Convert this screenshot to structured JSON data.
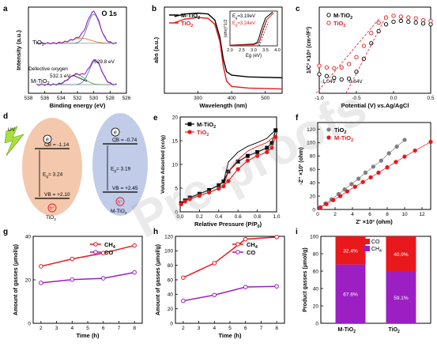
{
  "watermark": "Pre-proofs",
  "colors": {
    "black": "#000000",
    "red": "#e8181c",
    "purple": "#9b1fc2",
    "blue_fit": "#3d7fd8",
    "green_fit": "#43a843",
    "orange_fit": "#e07b39",
    "salmon": "#f4c8ac",
    "lavender": "#c0cce8",
    "lime": "#a8e040",
    "grey": "#7f7f7f"
  },
  "chart_data": [
    {
      "panel": "a",
      "type": "line",
      "title": "O 1s",
      "xlabel": "Binding energy (eV)",
      "ylabel": "Intensity (a.u.)",
      "xlim": [
        538,
        526
      ],
      "xticks": [
        538,
        536,
        534,
        532,
        530,
        528,
        526
      ],
      "series": [
        {
          "name": "TiO2",
          "label_parts": [
            "TiO",
            "2",
            ""
          ]
        },
        {
          "name": "M-TiO2",
          "label_parts": [
            "M-TiO",
            "2",
            ""
          ]
        }
      ],
      "annotations": [
        "Defective oxygen",
        "532.1 eV",
        "529.8 eV"
      ]
    },
    {
      "panel": "b",
      "type": "line",
      "xlabel": "Wavelength (nm)",
      "ylabel": "abs (a.u.)",
      "xlim": [
        200,
        550
      ],
      "xticks": [
        300,
        400,
        500
      ],
      "series": [
        {
          "name": "M-TiO2",
          "label_parts": [
            "M-TiO",
            "2",
            ""
          ]
        },
        {
          "name": "TiO2",
          "label_parts": [
            "TiO",
            "2",
            ""
          ]
        }
      ],
      "inset": {
        "xlabel": "Eg (eV)",
        "ylabel": "(αhν)^1/2",
        "xlim": [
          2.0,
          4.0
        ],
        "xticks": [
          2.0,
          2.5,
          3.0,
          3.5,
          4.0
        ],
        "labels": [
          {
            "parts": [
              "E",
              "g",
              "=3.19eV"
            ]
          },
          {
            "parts": [
              "E",
              "g",
              "=3.24eV"
            ]
          }
        ],
        "series": [
          {
            "name": "M-TiO2",
            "x": [
              2.0,
              3.0,
              3.15,
              3.22,
              3.3,
              3.5,
              3.8
            ],
            "y": [
              0.02,
              0.05,
              0.1,
              0.22,
              0.42,
              0.8,
              0.97
            ]
          },
          {
            "name": "TiO2",
            "x": [
              2.0,
              3.0,
              3.2,
              3.28,
              3.35,
              3.55,
              3.85
            ],
            "y": [
              0.02,
              0.03,
              0.08,
              0.2,
              0.38,
              0.75,
              0.95
            ]
          }
        ]
      },
      "main": [
        {
          "name": "M-TiO2",
          "x": [
            230,
            260,
            300,
            330,
            350,
            365,
            375,
            385,
            400,
            450,
            550
          ],
          "y": [
            0.89,
            0.92,
            0.93,
            0.92,
            0.85,
            0.65,
            0.4,
            0.25,
            0.21,
            0.19,
            0.18
          ]
        },
        {
          "name": "TiO2",
          "x": [
            230,
            260,
            300,
            330,
            350,
            365,
            375,
            385,
            400,
            450,
            550
          ],
          "y": [
            0.82,
            0.86,
            0.88,
            0.87,
            0.8,
            0.6,
            0.32,
            0.14,
            0.08,
            0.06,
            0.05
          ]
        }
      ]
    },
    {
      "panel": "c",
      "type": "scatter",
      "xlabel": "Potential (V) vs.Ag/AgCl",
      "ylabel": "1/C² ×10⁹ (cm⁴/F²)",
      "xlim": [
        -1.0,
        0.5
      ],
      "xticks": [
        -1.0,
        -0.5,
        0.0,
        0.5
      ],
      "series": [
        {
          "name": "M-TiO2",
          "label_parts": [
            "M-TiO",
            "2",
            ""
          ],
          "x": [
            -1.0,
            -0.9,
            -0.8,
            -0.7,
            -0.6,
            -0.5,
            -0.4,
            -0.3,
            -0.2,
            -0.1,
            0.0,
            0.1,
            0.2,
            0.3,
            0.4,
            0.5
          ],
          "y": [
            0.22,
            0.2,
            0.18,
            0.16,
            0.17,
            0.25,
            0.4,
            0.58,
            0.72,
            0.8,
            0.83,
            0.84,
            0.83,
            0.82,
            0.81,
            0.8
          ]
        },
        {
          "name": "TiO2",
          "label_parts": [
            "TiO",
            "2",
            ""
          ],
          "x": [
            -1.0,
            -0.9,
            -0.8,
            -0.7,
            -0.6,
            -0.5,
            -0.4,
            -0.3,
            -0.2,
            -0.1,
            0.0,
            0.1,
            0.2,
            0.3,
            0.4,
            0.5
          ],
          "y": [
            0.32,
            0.3,
            0.29,
            0.3,
            0.34,
            0.42,
            0.55,
            0.7,
            0.82,
            0.88,
            0.9,
            0.89,
            0.88,
            0.87,
            0.85,
            0.84
          ]
        }
      ],
      "annotations": [
        "-1.04V",
        "-0.64V"
      ]
    },
    {
      "panel": "d",
      "type": "diagram",
      "left": {
        "name_parts": [
          "TiO",
          "2",
          ""
        ],
        "cb": "CB = -1.14",
        "eg_parts": [
          "E",
          "g",
          "= 3.24"
        ],
        "vb": "VB = +2.10"
      },
      "right": {
        "name_parts": [
          "M-TiO",
          "2",
          ""
        ],
        "cb": "CB = -0.74",
        "eg_parts": [
          "E",
          "g",
          "= 3.19"
        ],
        "vb": "VB = +2.45"
      },
      "uv_label": "UV",
      "e_label": "e",
      "h_label": "h⁺"
    },
    {
      "panel": "e",
      "type": "line",
      "xlabel_parts": [
        "Relative Pressure (P/P",
        "0",
        ")"
      ],
      "ylabel": "Volume Adsorbed (cc/g)",
      "xlim": [
        0.0,
        1.0
      ],
      "ylim": [
        0,
        20
      ],
      "xticks": [
        0.0,
        0.2,
        0.4,
        0.6,
        0.8,
        1.0
      ],
      "yticks": [
        0,
        5,
        10,
        15,
        20
      ],
      "series": [
        {
          "name": "M-TiO2",
          "label_parts": [
            "M-TiO",
            "2",
            ""
          ],
          "x": [
            0.01,
            0.05,
            0.1,
            0.2,
            0.3,
            0.4,
            0.45,
            0.5,
            0.6,
            0.7,
            0.8,
            0.9,
            0.95,
            0.99
          ],
          "y": [
            1.8,
            2.4,
            3.0,
            3.8,
            4.6,
            5.6,
            6.4,
            8.5,
            10.6,
            11.8,
            12.6,
            13.5,
            14.5,
            17.2
          ]
        },
        {
          "name": "TiO2",
          "label_parts": [
            "TiO",
            "2",
            ""
          ],
          "x": [
            0.01,
            0.05,
            0.1,
            0.2,
            0.3,
            0.4,
            0.45,
            0.5,
            0.6,
            0.7,
            0.8,
            0.9,
            0.95,
            0.99
          ],
          "y": [
            1.6,
            2.2,
            2.7,
            3.4,
            4.1,
            4.9,
            5.4,
            6.5,
            9.0,
            10.8,
            11.8,
            12.6,
            13.5,
            15.8
          ]
        }
      ]
    },
    {
      "panel": "f",
      "type": "scatter",
      "xlabel": "Z' ×10³ (ohm)",
      "ylabel": "-Z'' ×10³ (ohm)",
      "xlim": [
        0,
        13
      ],
      "ylim": [
        0,
        130
      ],
      "xticks": [
        0,
        2,
        4,
        6,
        8,
        10,
        12
      ],
      "yticks": [
        0,
        20,
        40,
        60,
        80,
        100,
        120
      ],
      "series": [
        {
          "name": "TiO2",
          "label_parts": [
            "TiO",
            "2",
            ""
          ],
          "x": [
            0.3,
            0.9,
            1.6,
            2.4,
            3.1,
            3.9,
            4.7,
            5.5,
            6.4,
            7.3,
            8.2,
            9.1,
            10.0
          ],
          "y": [
            3,
            9,
            15,
            23,
            30,
            38,
            46,
            55,
            64,
            73,
            84,
            94,
            104
          ]
        },
        {
          "name": "M-TiO2",
          "label_parts": [
            "M-TiO",
            "2",
            ""
          ],
          "x": [
            0.3,
            1.0,
            1.8,
            2.6,
            3.4,
            4.3,
            5.2,
            6.1,
            7.0,
            8.0,
            9.0,
            10.0,
            11.2,
            13.0
          ],
          "y": [
            3,
            8,
            14,
            20,
            27,
            34,
            41,
            48,
            55,
            63,
            71,
            79,
            88,
            101
          ]
        }
      ]
    },
    {
      "panel": "g",
      "type": "line",
      "xlabel": "Time (h)",
      "ylabel": "Amount of gasses (µmol/g)",
      "xlim": [
        1.5,
        8.5
      ],
      "ylim": [
        0,
        40
      ],
      "xticks": [
        2,
        3,
        4,
        5,
        6,
        7,
        8
      ],
      "yticks": [
        0,
        20,
        40
      ],
      "x": [
        2,
        4,
        6,
        8
      ],
      "series": [
        {
          "name": "CH4",
          "label_parts": [
            "CH",
            "4",
            ""
          ],
          "values": [
            26.2,
            29.6,
            32.3,
            35.8
          ]
        },
        {
          "name": "CO",
          "label_parts": [
            "CO",
            "",
            ""
          ],
          "values": [
            18.6,
            20.1,
            20.7,
            23.4
          ]
        }
      ]
    },
    {
      "panel": "h",
      "type": "line",
      "xlabel": "Time (h)",
      "ylabel": "Amount of gasses (µmol/g)",
      "xlim": [
        1.5,
        8.5
      ],
      "ylim": [
        0,
        120
      ],
      "xticks": [
        2,
        3,
        4,
        5,
        6,
        7,
        8
      ],
      "yticks": [
        0,
        20,
        40,
        60,
        80,
        100,
        120
      ],
      "x": [
        2,
        4,
        6,
        8
      ],
      "series": [
        {
          "name": "CH4",
          "label_parts": [
            "CH",
            "4",
            ""
          ],
          "values": [
            63,
            83,
            116,
            119
          ]
        },
        {
          "name": "CO",
          "label_parts": [
            "CO",
            "",
            ""
          ],
          "values": [
            31,
            39,
            50,
            51
          ]
        }
      ]
    },
    {
      "panel": "i",
      "type": "bar",
      "xlabel": "",
      "ylabel": "Product gasses (µmol/g)",
      "categories": [
        "M-TiO2",
        "TiO2"
      ],
      "category_parts": [
        [
          "M-TiO",
          "2",
          ""
        ],
        [
          "TiO",
          "2",
          ""
        ]
      ],
      "ylim": [
        0,
        100
      ],
      "yticks": [
        0,
        20,
        40,
        60,
        80,
        100
      ],
      "series": [
        {
          "name": "CH4",
          "label_parts": [
            "CH",
            "4",
            ""
          ],
          "values": [
            67.6,
            59.1
          ],
          "labels": [
            "67.6%",
            "59.1%"
          ]
        },
        {
          "name": "CO",
          "label_parts": [
            "CO",
            "",
            ""
          ],
          "values": [
            32.4,
            40.9
          ],
          "labels": [
            "32.4%",
            "40.9%"
          ]
        }
      ]
    }
  ]
}
